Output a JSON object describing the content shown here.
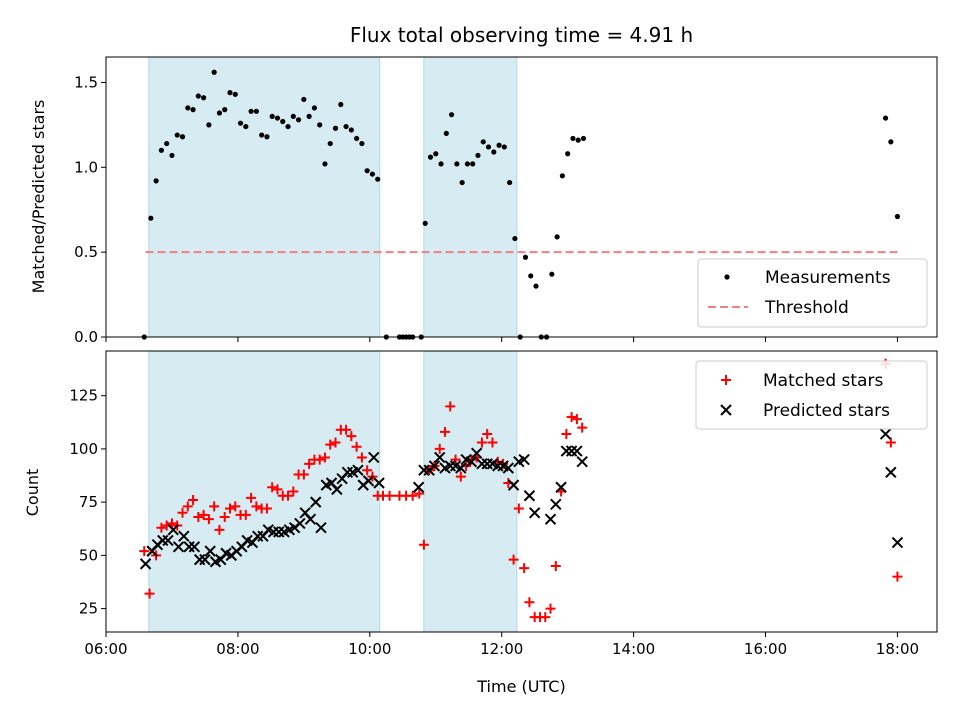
{
  "colors": {
    "shade": "#add8e6",
    "measurement": "#000000",
    "threshold": "#f08080",
    "matched": "#ff0000",
    "predicted": "#000000"
  },
  "chart_data": [
    {
      "type": "scatter",
      "title": "Flux total observing time = 4.91 h",
      "xlabel": "",
      "ylabel": "Matched/Predicted stars",
      "xlim": [
        6.0,
        18.6
      ],
      "ylim": [
        0.0,
        1.65
      ],
      "yticks": [
        0.0,
        0.5,
        1.0,
        1.5
      ],
      "ytick_labels": [
        "0.0",
        "0.5",
        "1.0",
        "1.5"
      ],
      "shaded_intervals": [
        [
          6.65,
          10.15
        ],
        [
          10.82,
          12.23
        ]
      ],
      "legend_position": "bottom-right",
      "threshold": {
        "name": "Threshold",
        "value": 0.5,
        "x_range": [
          6.6,
          18.0
        ]
      },
      "series": [
        {
          "name": "Measurements",
          "points": [
            [
              6.58,
              0.0
            ],
            [
              6.68,
              0.7
            ],
            [
              6.76,
              0.92
            ],
            [
              6.84,
              1.1
            ],
            [
              6.92,
              1.14
            ],
            [
              7.0,
              1.07
            ],
            [
              7.08,
              1.19
            ],
            [
              7.16,
              1.18
            ],
            [
              7.24,
              1.35
            ],
            [
              7.32,
              1.34
            ],
            [
              7.4,
              1.42
            ],
            [
              7.48,
              1.41
            ],
            [
              7.56,
              1.25
            ],
            [
              7.64,
              1.56
            ],
            [
              7.72,
              1.32
            ],
            [
              7.8,
              1.34
            ],
            [
              7.88,
              1.44
            ],
            [
              7.96,
              1.43
            ],
            [
              8.04,
              1.26
            ],
            [
              8.12,
              1.24
            ],
            [
              8.2,
              1.33
            ],
            [
              8.28,
              1.33
            ],
            [
              8.36,
              1.19
            ],
            [
              8.44,
              1.18
            ],
            [
              8.52,
              1.3
            ],
            [
              8.6,
              1.29
            ],
            [
              8.68,
              1.27
            ],
            [
              8.76,
              1.24
            ],
            [
              8.84,
              1.3
            ],
            [
              8.92,
              1.28
            ],
            [
              9.0,
              1.4
            ],
            [
              9.08,
              1.3
            ],
            [
              9.16,
              1.35
            ],
            [
              9.24,
              1.25
            ],
            [
              9.32,
              1.02
            ],
            [
              9.4,
              1.14
            ],
            [
              9.48,
              1.23
            ],
            [
              9.56,
              1.37
            ],
            [
              9.64,
              1.24
            ],
            [
              9.72,
              1.22
            ],
            [
              9.8,
              1.17
            ],
            [
              9.88,
              1.14
            ],
            [
              9.96,
              0.98
            ],
            [
              10.04,
              0.96
            ],
            [
              10.12,
              0.93
            ],
            [
              10.25,
              0.0
            ],
            [
              10.45,
              0.0
            ],
            [
              10.5,
              0.0
            ],
            [
              10.55,
              0.0
            ],
            [
              10.6,
              0.0
            ],
            [
              10.65,
              0.0
            ],
            [
              10.78,
              0.0
            ],
            [
              10.84,
              0.67
            ],
            [
              10.92,
              1.06
            ],
            [
              11.0,
              1.08
            ],
            [
              11.08,
              1.02
            ],
            [
              11.16,
              1.2
            ],
            [
              11.24,
              1.31
            ],
            [
              11.32,
              1.02
            ],
            [
              11.4,
              0.91
            ],
            [
              11.48,
              1.02
            ],
            [
              11.56,
              1.02
            ],
            [
              11.64,
              1.07
            ],
            [
              11.72,
              1.15
            ],
            [
              11.8,
              1.12
            ],
            [
              11.88,
              1.09
            ],
            [
              11.96,
              1.13
            ],
            [
              12.04,
              1.12
            ],
            [
              12.12,
              0.91
            ],
            [
              12.2,
              0.58
            ],
            [
              12.28,
              0.0
            ],
            [
              12.36,
              0.47
            ],
            [
              12.44,
              0.36
            ],
            [
              12.52,
              0.3
            ],
            [
              12.6,
              0.0
            ],
            [
              12.68,
              0.0
            ],
            [
              12.76,
              0.37
            ],
            [
              12.84,
              0.59
            ],
            [
              12.92,
              0.95
            ],
            [
              13.0,
              1.08
            ],
            [
              13.08,
              1.17
            ],
            [
              13.16,
              1.16
            ],
            [
              13.24,
              1.17
            ],
            [
              17.82,
              1.29
            ],
            [
              17.9,
              1.15
            ],
            [
              18.0,
              0.71
            ]
          ]
        }
      ]
    },
    {
      "type": "scatter",
      "title": "",
      "xlabel": "Time (UTC)",
      "ylabel": "Count",
      "xlim": [
        6.0,
        18.6
      ],
      "ylim": [
        14.0,
        146.0
      ],
      "xticks": [
        6,
        8,
        10,
        12,
        14,
        16,
        18
      ],
      "xtick_labels": [
        "06:00",
        "08:00",
        "10:00",
        "12:00",
        "14:00",
        "16:00",
        "18:00"
      ],
      "yticks": [
        25,
        50,
        75,
        100,
        125
      ],
      "ytick_labels": [
        "25",
        "50",
        "75",
        "100",
        "125"
      ],
      "shaded_intervals": [
        [
          6.65,
          10.15
        ],
        [
          10.82,
          12.23
        ]
      ],
      "legend_position": "top-right",
      "series": [
        {
          "name": "Matched stars",
          "points": [
            [
              6.58,
              52
            ],
            [
              6.66,
              32
            ],
            [
              6.76,
              50
            ],
            [
              6.84,
              63
            ],
            [
              6.92,
              64
            ],
            [
              7.0,
              65
            ],
            [
              7.08,
              64
            ],
            [
              7.16,
              70
            ],
            [
              7.24,
              73
            ],
            [
              7.32,
              76
            ],
            [
              7.4,
              68
            ],
            [
              7.48,
              69
            ],
            [
              7.56,
              67
            ],
            [
              7.64,
              73
            ],
            [
              7.72,
              62
            ],
            [
              7.8,
              68
            ],
            [
              7.88,
              72
            ],
            [
              7.96,
              73
            ],
            [
              8.04,
              69
            ],
            [
              8.12,
              69
            ],
            [
              8.2,
              77
            ],
            [
              8.28,
              73
            ],
            [
              8.36,
              72
            ],
            [
              8.44,
              72
            ],
            [
              8.52,
              82
            ],
            [
              8.6,
              81
            ],
            [
              8.68,
              78
            ],
            [
              8.76,
              78
            ],
            [
              8.84,
              80
            ],
            [
              8.92,
              88
            ],
            [
              9.0,
              88
            ],
            [
              9.08,
              93
            ],
            [
              9.16,
              95
            ],
            [
              9.24,
              95
            ],
            [
              9.32,
              96
            ],
            [
              9.4,
              102
            ],
            [
              9.48,
              103
            ],
            [
              9.56,
              109
            ],
            [
              9.64,
              109
            ],
            [
              9.72,
              106
            ],
            [
              9.8,
              101
            ],
            [
              9.88,
              96
            ],
            [
              9.96,
              90
            ],
            [
              10.04,
              87
            ],
            [
              10.12,
              78
            ],
            [
              10.2,
              78
            ],
            [
              10.3,
              78
            ],
            [
              10.45,
              78
            ],
            [
              10.55,
              78
            ],
            [
              10.65,
              78
            ],
            [
              10.75,
              79
            ],
            [
              10.82,
              55
            ],
            [
              10.9,
              90
            ],
            [
              10.98,
              92
            ],
            [
              11.06,
              100
            ],
            [
              11.14,
              108
            ],
            [
              11.22,
              120
            ],
            [
              11.3,
              95
            ],
            [
              11.38,
              87
            ],
            [
              11.46,
              92
            ],
            [
              11.54,
              95
            ],
            [
              11.62,
              96
            ],
            [
              11.7,
              103
            ],
            [
              11.78,
              107
            ],
            [
              11.86,
              103
            ],
            [
              11.94,
              94
            ],
            [
              12.02,
              93
            ],
            [
              12.1,
              84
            ],
            [
              12.18,
              48
            ],
            [
              12.26,
              72
            ],
            [
              12.34,
              44
            ],
            [
              12.42,
              28
            ],
            [
              12.5,
              21
            ],
            [
              12.58,
              21
            ],
            [
              12.66,
              21
            ],
            [
              12.74,
              25
            ],
            [
              12.82,
              45
            ],
            [
              12.9,
              80
            ],
            [
              12.98,
              107
            ],
            [
              13.06,
              115
            ],
            [
              13.14,
              114
            ],
            [
              13.22,
              110
            ],
            [
              17.82,
              140
            ],
            [
              17.9,
              103
            ],
            [
              18.0,
              40
            ]
          ]
        },
        {
          "name": "Predicted stars",
          "points": [
            [
              6.6,
              46
            ],
            [
              6.7,
              52
            ],
            [
              6.78,
              55
            ],
            [
              6.86,
              57
            ],
            [
              6.94,
              57
            ],
            [
              7.02,
              62
            ],
            [
              7.1,
              54
            ],
            [
              7.18,
              59
            ],
            [
              7.26,
              54
            ],
            [
              7.34,
              54
            ],
            [
              7.42,
              48
            ],
            [
              7.5,
              48
            ],
            [
              7.58,
              52
            ],
            [
              7.66,
              47
            ],
            [
              7.74,
              48
            ],
            [
              7.82,
              51
            ],
            [
              7.9,
              50
            ],
            [
              7.98,
              52
            ],
            [
              8.06,
              54
            ],
            [
              8.14,
              57
            ],
            [
              8.22,
              56
            ],
            [
              8.3,
              59
            ],
            [
              8.38,
              59
            ],
            [
              8.46,
              62
            ],
            [
              8.54,
              61
            ],
            [
              8.62,
              61
            ],
            [
              8.7,
              61
            ],
            [
              8.78,
              62
            ],
            [
              8.86,
              63
            ],
            [
              8.94,
              65
            ],
            [
              9.02,
              70
            ],
            [
              9.1,
              67
            ],
            [
              9.18,
              75
            ],
            [
              9.26,
              63
            ],
            [
              9.34,
              83
            ],
            [
              9.42,
              84
            ],
            [
              9.5,
              81
            ],
            [
              9.58,
              86
            ],
            [
              9.66,
              89
            ],
            [
              9.74,
              89
            ],
            [
              9.82,
              90
            ],
            [
              9.9,
              83
            ],
            [
              9.98,
              85
            ],
            [
              10.06,
              96
            ],
            [
              10.14,
              84
            ],
            [
              10.74,
              82
            ],
            [
              10.82,
              90
            ],
            [
              10.9,
              90
            ],
            [
              10.98,
              92
            ],
            [
              11.06,
              96
            ],
            [
              11.14,
              91
            ],
            [
              11.22,
              92
            ],
            [
              11.3,
              92
            ],
            [
              11.38,
              91
            ],
            [
              11.46,
              95
            ],
            [
              11.54,
              94
            ],
            [
              11.62,
              98
            ],
            [
              11.7,
              93
            ],
            [
              11.78,
              93
            ],
            [
              11.86,
              93
            ],
            [
              11.94,
              92
            ],
            [
              12.02,
              92
            ],
            [
              12.1,
              91
            ],
            [
              12.18,
              83
            ],
            [
              12.26,
              94
            ],
            [
              12.34,
              95
            ],
            [
              12.42,
              78
            ],
            [
              12.5,
              70
            ],
            [
              12.74,
              67
            ],
            [
              12.82,
              74
            ],
            [
              12.9,
              82
            ],
            [
              12.98,
              99
            ],
            [
              13.06,
              99
            ],
            [
              13.14,
              99
            ],
            [
              13.22,
              94
            ],
            [
              17.82,
              107
            ],
            [
              17.9,
              89
            ],
            [
              18.0,
              56
            ]
          ]
        }
      ]
    }
  ]
}
